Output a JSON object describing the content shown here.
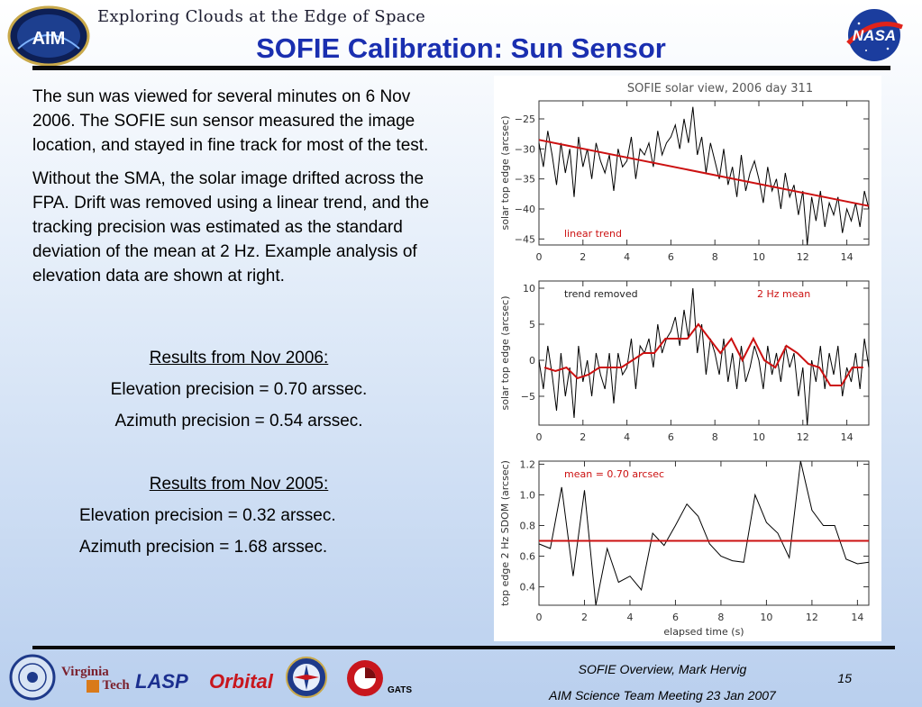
{
  "header": {
    "tagline": "Exploring Clouds at the Edge of Space",
    "title": "SOFIE Calibration: Sun Sensor",
    "aim_logo_text": "AIM",
    "nasa_logo_text": "NASA"
  },
  "body": {
    "para1": "The sun was viewed for several minutes on 6 Nov 2006.  The SOFIE sun sensor measured the image location, and stayed in fine track for most of the test.",
    "para2": "Without the SMA, the solar image drifted across the FPA.   Drift was removed using a linear trend, and the tracking precision was estimated as the standard deviation of the mean at 2 Hz.  Example analysis of elevation data are shown at right.",
    "results_2006_heading": "Results from Nov 2006:",
    "results_2006_elev": "Elevation precision = 0.70 arssec.",
    "results_2006_az": "Azimuth precision = 0.54 arssec.",
    "results_2005_heading": "Results from Nov 2005:",
    "results_2005_elev": "Elevation precision = 0.32 arssec.",
    "results_2005_az": "Azimuth precision = 1.68 arssec."
  },
  "footer": {
    "line1": "SOFIE Overview, Mark Hervig",
    "line2": "AIM Science Team Meeting 23 Jan 2007",
    "page_number": "15",
    "logo_virginia_tech_1": "Virginia",
    "logo_virginia_tech_2": "Tech",
    "logo_lasp": "LASP",
    "logo_orbital": "Orbital",
    "logo_gats": "GATS"
  },
  "chart_data": [
    {
      "type": "line",
      "title": "SOFIE solar view, 2006 day 311",
      "xlabel": "",
      "ylabel": "solar top edge (arcsec)",
      "xlim": [
        0,
        15
      ],
      "ylim": [
        -46,
        -22
      ],
      "xticks": [
        0,
        2,
        4,
        6,
        8,
        10,
        12,
        14
      ],
      "yticks": [
        -25,
        -30,
        -35,
        -40,
        -45
      ],
      "annotation": "linear trend",
      "series": [
        {
          "role": "trace",
          "color": "#000000",
          "x": [
            0,
            0.2,
            0.4,
            0.6,
            0.8,
            1.0,
            1.2,
            1.4,
            1.6,
            1.8,
            2.0,
            2.2,
            2.4,
            2.6,
            2.8,
            3.0,
            3.2,
            3.4,
            3.6,
            3.8,
            4.0,
            4.2,
            4.4,
            4.6,
            4.8,
            5.0,
            5.2,
            5.4,
            5.6,
            5.8,
            6.0,
            6.2,
            6.4,
            6.6,
            6.8,
            7.0,
            7.2,
            7.4,
            7.6,
            7.8,
            8.0,
            8.2,
            8.4,
            8.6,
            8.8,
            9.0,
            9.2,
            9.4,
            9.6,
            9.8,
            10.0,
            10.2,
            10.4,
            10.6,
            10.8,
            11.0,
            11.2,
            11.4,
            11.6,
            11.8,
            12.0,
            12.2,
            12.4,
            12.6,
            12.8,
            13.0,
            13.2,
            13.4,
            13.6,
            13.8,
            14.0,
            14.2,
            14.4,
            14.6,
            14.8,
            15.0
          ],
          "y": [
            -29,
            -33,
            -27,
            -31,
            -36,
            -29,
            -34,
            -30,
            -38,
            -28,
            -33,
            -30,
            -35,
            -29,
            -32,
            -34,
            -31,
            -37,
            -30,
            -33,
            -32,
            -28,
            -35,
            -30,
            -31,
            -29,
            -33,
            -27,
            -31,
            -29,
            -28,
            -26,
            -30,
            -25,
            -29,
            -23,
            -31,
            -28,
            -34,
            -29,
            -32,
            -35,
            -30,
            -36,
            -33,
            -38,
            -31,
            -37,
            -34,
            -32,
            -35,
            -39,
            -33,
            -37,
            -35,
            -40,
            -34,
            -38,
            -36,
            -41,
            -37,
            -46,
            -38,
            -42,
            -37,
            -43,
            -39,
            -41,
            -38,
            -44,
            -40,
            -42,
            -39,
            -43,
            -37,
            -40
          ]
        },
        {
          "role": "linear trend",
          "color": "#cc1111",
          "x": [
            0,
            15
          ],
          "y": [
            -28.5,
            -39.5
          ]
        }
      ]
    },
    {
      "type": "line",
      "title": "",
      "xlabel": "",
      "ylabel": "solar top edge (arcsec)",
      "xlim": [
        0,
        15
      ],
      "ylim": [
        -9,
        11
      ],
      "xticks": [
        0,
        2,
        4,
        6,
        8,
        10,
        12,
        14
      ],
      "yticks": [
        10,
        5,
        0,
        -5
      ],
      "annotations": [
        "trend removed",
        "2 Hz mean"
      ],
      "series": [
        {
          "role": "trend removed",
          "color": "#000000",
          "x": [
            0,
            0.2,
            0.4,
            0.6,
            0.8,
            1.0,
            1.2,
            1.4,
            1.6,
            1.8,
            2.0,
            2.2,
            2.4,
            2.6,
            2.8,
            3.0,
            3.2,
            3.4,
            3.6,
            3.8,
            4.0,
            4.2,
            4.4,
            4.6,
            4.8,
            5.0,
            5.2,
            5.4,
            5.6,
            5.8,
            6.0,
            6.2,
            6.4,
            6.6,
            6.8,
            7.0,
            7.2,
            7.4,
            7.6,
            7.8,
            8.0,
            8.2,
            8.4,
            8.6,
            8.8,
            9.0,
            9.2,
            9.4,
            9.6,
            9.8,
            10.0,
            10.2,
            10.4,
            10.6,
            10.8,
            11.0,
            11.2,
            11.4,
            11.6,
            11.8,
            12.0,
            12.2,
            12.4,
            12.6,
            12.8,
            13.0,
            13.2,
            13.4,
            13.6,
            13.8,
            14.0,
            14.2,
            14.4,
            14.6,
            14.8,
            15.0
          ],
          "y": [
            0,
            -4,
            2,
            -2,
            -7,
            1,
            -5,
            -1,
            -8,
            2,
            -3,
            0,
            -5,
            1,
            -2,
            -4,
            1,
            -6,
            1,
            -2,
            -1,
            3,
            -4,
            2,
            1,
            3,
            -1,
            5,
            1,
            3,
            4,
            6,
            2,
            7,
            3,
            10,
            1,
            5,
            -2,
            3,
            1,
            -2,
            3,
            -3,
            1,
            -4,
            2,
            -3,
            -1,
            2,
            0,
            -4,
            2,
            -2,
            1,
            -3,
            2,
            -1,
            1,
            -5,
            -1,
            -9,
            0,
            -3,
            2,
            -4,
            1,
            -2,
            2,
            -5,
            -1,
            -3,
            1,
            -4,
            3,
            -1
          ]
        },
        {
          "role": "2 Hz mean",
          "color": "#cc1111",
          "x": [
            0.25,
            0.75,
            1.25,
            1.75,
            2.25,
            2.75,
            3.25,
            3.75,
            4.25,
            4.75,
            5.25,
            5.75,
            6.25,
            6.75,
            7.25,
            7.75,
            8.25,
            8.75,
            9.25,
            9.75,
            10.25,
            10.75,
            11.25,
            11.75,
            12.25,
            12.75,
            13.25,
            13.75,
            14.25,
            14.75
          ],
          "y": [
            -1,
            -1.5,
            -1,
            -2.5,
            -2,
            -1,
            -1,
            -1,
            0,
            1,
            1,
            3,
            3,
            3,
            5,
            3,
            1,
            3,
            0,
            3,
            0,
            -1,
            2,
            1,
            -0.5,
            -1,
            -3.5,
            -3.5,
            -1,
            -1
          ]
        }
      ]
    },
    {
      "type": "line",
      "title": "",
      "xlabel": "elapsed time (s)",
      "ylabel": "top edge 2 Hz SDOM (arcsec)",
      "xlim": [
        0,
        14.5
      ],
      "ylim": [
        0.28,
        1.22
      ],
      "xticks": [
        0,
        2,
        4,
        6,
        8,
        10,
        12,
        14
      ],
      "yticks": [
        1.2,
        1.0,
        0.8,
        0.6,
        0.4
      ],
      "ytick_labels": [
        "1.2",
        "1.0",
        "0.8",
        "0.6",
        "0.4"
      ],
      "annotation": "mean =  0.70 arcsec",
      "series": [
        {
          "role": "SDOM",
          "color": "#000000",
          "x": [
            0.0,
            0.5,
            1.0,
            1.5,
            2.0,
            2.5,
            3.0,
            3.5,
            4.0,
            4.5,
            5.0,
            5.5,
            6.0,
            6.5,
            7.0,
            7.5,
            8.0,
            8.5,
            9.0,
            9.5,
            10.0,
            10.5,
            11.0,
            11.5,
            12.0,
            12.5,
            13.0,
            13.5,
            14.0,
            14.5
          ],
          "y": [
            0.68,
            0.65,
            1.05,
            0.47,
            1.03,
            0.28,
            0.65,
            0.43,
            0.47,
            0.38,
            0.75,
            0.67,
            0.8,
            0.94,
            0.86,
            0.68,
            0.6,
            0.57,
            0.56,
            1.0,
            0.82,
            0.75,
            0.59,
            1.22,
            0.9,
            0.8,
            0.8,
            0.58,
            0.55,
            0.56
          ]
        },
        {
          "role": "mean",
          "color": "#cc1111",
          "x": [
            0,
            14.5
          ],
          "y": [
            0.7,
            0.7
          ]
        }
      ]
    }
  ]
}
